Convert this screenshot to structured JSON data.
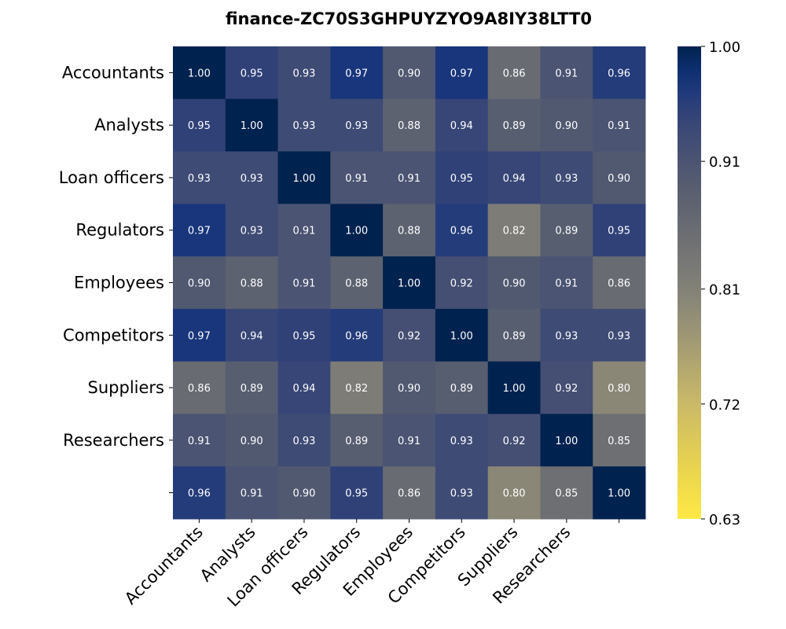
{
  "chart_data": {
    "type": "heatmap",
    "title": "finance-ZC70S3GHPUYZYO9A8IY38LTT0",
    "xlabel": "",
    "ylabel": "",
    "row_labels": [
      "Accountants",
      "Analysts",
      "Loan officers",
      "Regulators",
      "Employees",
      "Competitors",
      "Suppliers",
      "Researchers",
      ""
    ],
    "col_labels": [
      "Accountants",
      "Analysts",
      "Loan officers",
      "Regulators",
      "Employees",
      "Competitors",
      "Suppliers",
      "Researchers",
      ""
    ],
    "values": [
      [
        1.0,
        0.95,
        0.93,
        0.97,
        0.9,
        0.97,
        0.86,
        0.91,
        0.96
      ],
      [
        0.95,
        1.0,
        0.93,
        0.93,
        0.88,
        0.94,
        0.89,
        0.9,
        0.91
      ],
      [
        0.93,
        0.93,
        1.0,
        0.91,
        0.91,
        0.95,
        0.94,
        0.93,
        0.9
      ],
      [
        0.97,
        0.93,
        0.91,
        1.0,
        0.88,
        0.96,
        0.82,
        0.89,
        0.95
      ],
      [
        0.9,
        0.88,
        0.91,
        0.88,
        1.0,
        0.92,
        0.9,
        0.91,
        0.86
      ],
      [
        0.97,
        0.94,
        0.95,
        0.96,
        0.92,
        1.0,
        0.89,
        0.93,
        0.93
      ],
      [
        0.86,
        0.89,
        0.94,
        0.82,
        0.9,
        0.89,
        1.0,
        0.92,
        0.8
      ],
      [
        0.91,
        0.9,
        0.93,
        0.89,
        0.91,
        0.93,
        0.92,
        1.0,
        0.85
      ],
      [
        0.96,
        0.91,
        0.9,
        0.95,
        0.86,
        0.93,
        0.8,
        0.85,
        1.0
      ]
    ],
    "value_format": "2 decimals",
    "colormap": "cividis (reversed)",
    "colorbar": {
      "min": 0.63,
      "max": 1.0,
      "ticks": [
        "1.00",
        "0.91",
        "0.81",
        "0.72",
        "0.63"
      ]
    },
    "grid": false,
    "legend": "colorbar right"
  }
}
